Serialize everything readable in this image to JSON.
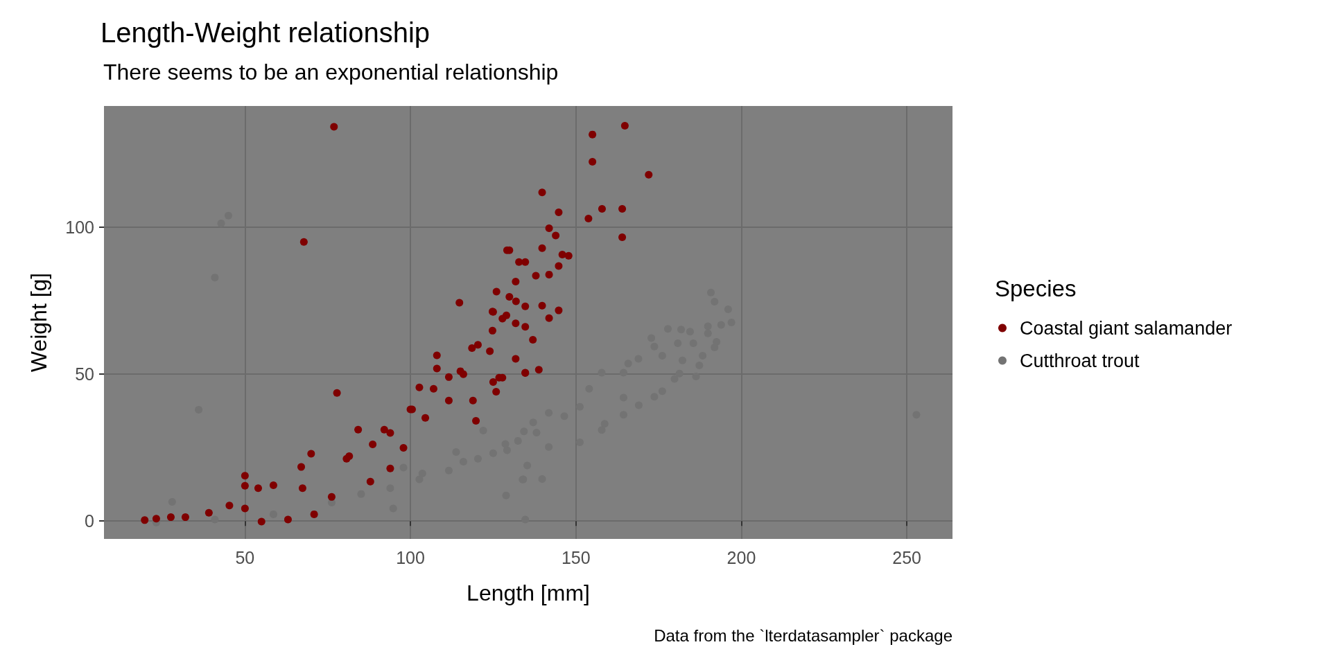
{
  "chart_data": {
    "type": "scatter",
    "title": "Length-Weight relationship",
    "subtitle": "There seems to be an exponential relationship",
    "xlabel": "Length [mm]",
    "ylabel": "Weight [g]",
    "legend_title": "Species",
    "annotations": [
      "Data from the `lterdatasampler` package"
    ],
    "xlim": [
      7.4,
      263.8
    ],
    "ylim": [
      -6.1,
      141.3
    ],
    "xticks": [
      50,
      100,
      150,
      200,
      250
    ],
    "yticks": [
      0,
      50,
      100
    ],
    "grid": true,
    "legend": "right",
    "marker": "circle",
    "series": [
      {
        "name": "Cutthroat trout",
        "color": "#737373",
        "x": [
          45.0,
          42.8,
          40.9,
          36.0,
          28.0,
          134.7,
          122.0,
          113.8,
          97.9,
          128.9,
          134.1,
          23.2,
          40.9,
          58.6,
          76.2,
          85.1,
          93.9,
          102.7,
          111.6,
          120.4,
          129.2,
          138.1,
          94.8,
          103.6,
          116.0,
          190.8,
          191.9,
          196.0,
          197.0,
          193.9,
          189.9,
          189.9,
          192.5,
          191.9,
          184.5,
          177.8,
          181.8,
          180.8,
          185.5,
          188.3,
          187.3,
          186.3,
          172.8,
          173.7,
          176.1,
          182.2,
          181.3,
          179.8,
          168.9,
          165.8,
          176.1,
          173.7,
          164.4,
          157.8,
          154.0,
          164.4,
          169.0,
          164.4,
          158.7,
          157.8,
          151.2,
          151.2,
          146.5,
          141.8,
          141.8,
          137.1,
          134.3,
          132.5,
          128.7,
          125.0,
          135.3,
          139.8,
          133.9,
          252.9
        ],
        "values": [
          104.0,
          101.3,
          82.9,
          37.9,
          6.5,
          0.5,
          30.8,
          23.5,
          18.2,
          8.7,
          14.2,
          -0.5,
          0.5,
          2.3,
          6.3,
          9.2,
          11.2,
          14.2,
          17.2,
          21.2,
          24.1,
          30.1,
          4.3,
          16.2,
          20.2,
          77.8,
          74.7,
          72.1,
          67.6,
          66.8,
          66.3,
          63.9,
          61.0,
          59.1,
          64.5,
          65.4,
          65.2,
          60.5,
          60.5,
          56.3,
          53.0,
          49.2,
          62.3,
          59.4,
          56.3,
          54.7,
          50.2,
          48.4,
          55.2,
          53.6,
          44.2,
          42.3,
          50.5,
          50.5,
          45.0,
          42.0,
          39.4,
          36.2,
          33.1,
          31.0,
          38.9,
          26.8,
          35.7,
          36.8,
          25.2,
          33.6,
          30.5,
          27.3,
          26.2,
          23.1,
          18.9,
          14.3,
          14.1,
          36.2
        ]
      },
      {
        "name": "Coastal giant salamander",
        "color": "#7f0000",
        "x": [
          76.9,
          67.8,
          77.8,
          114.8,
          19.7,
          32.0,
          50.0,
          50.0,
          67.4,
          80.7,
          93.9,
          100.0,
          107.0,
          116.0,
          120.4,
          129.0,
          129.2,
          132.8,
          55.0,
          63.0,
          70.9,
          76.2,
          87.9,
          93.9,
          97.9,
          102.7,
          108.0,
          108.0,
          119.8,
          118.9,
          126.8,
          134.7,
          124.8,
          84.2,
          70.0,
          67.0,
          50.0,
          54.0,
          58.6,
          81.5,
          88.6,
          92.1,
          100.5,
          111.6,
          115.1,
          118.6,
          124.8,
          131.9,
          111.6,
          104.5,
          39.1,
          27.6,
          23.2,
          45.3,
          164.8,
          155.0,
          155.0,
          172.0,
          139.8,
          144.8,
          157.9,
          164.0,
          153.8,
          164.0,
          141.9,
          143.9,
          129.9,
          139.8,
          147.8,
          145.9,
          144.8,
          137.9,
          141.9,
          134.7,
          131.8,
          126.0,
          129.9,
          134.7,
          139.8,
          144.8,
          141.9,
          125.0,
          127.8,
          131.8,
          134.7,
          137.0,
          138.8,
          134.7,
          131.8,
          127.8,
          125.9,
          125.0,
          124.0
        ],
        "values": [
          134.2,
          95.0,
          43.6,
          74.3,
          0.3,
          1.3,
          4.3,
          15.4,
          11.2,
          21.2,
          30.0,
          38.0,
          45.0,
          50.0,
          60.0,
          70.0,
          92.2,
          88.2,
          -0.2,
          0.5,
          2.3,
          8.2,
          13.4,
          17.9,
          24.9,
          45.5,
          56.4,
          51.9,
          34.1,
          41.0,
          48.8,
          50.4,
          71.3,
          31.1,
          22.9,
          18.4,
          12.0,
          11.2,
          12.2,
          22.1,
          26.1,
          31.1,
          38.0,
          49.0,
          51.0,
          58.9,
          64.8,
          74.8,
          41.0,
          35.1,
          2.8,
          1.3,
          0.8,
          5.3,
          134.6,
          131.6,
          122.3,
          117.9,
          111.9,
          105.1,
          106.3,
          106.3,
          103.0,
          96.6,
          99.7,
          97.2,
          92.2,
          92.9,
          90.3,
          90.7,
          86.8,
          83.5,
          83.9,
          88.2,
          81.5,
          78.1,
          76.3,
          73.1,
          73.3,
          71.7,
          69.1,
          71.2,
          68.9,
          67.3,
          66.1,
          61.7,
          51.5,
          50.5,
          55.2,
          48.8,
          44.0,
          47.3,
          57.8
        ]
      }
    ]
  }
}
